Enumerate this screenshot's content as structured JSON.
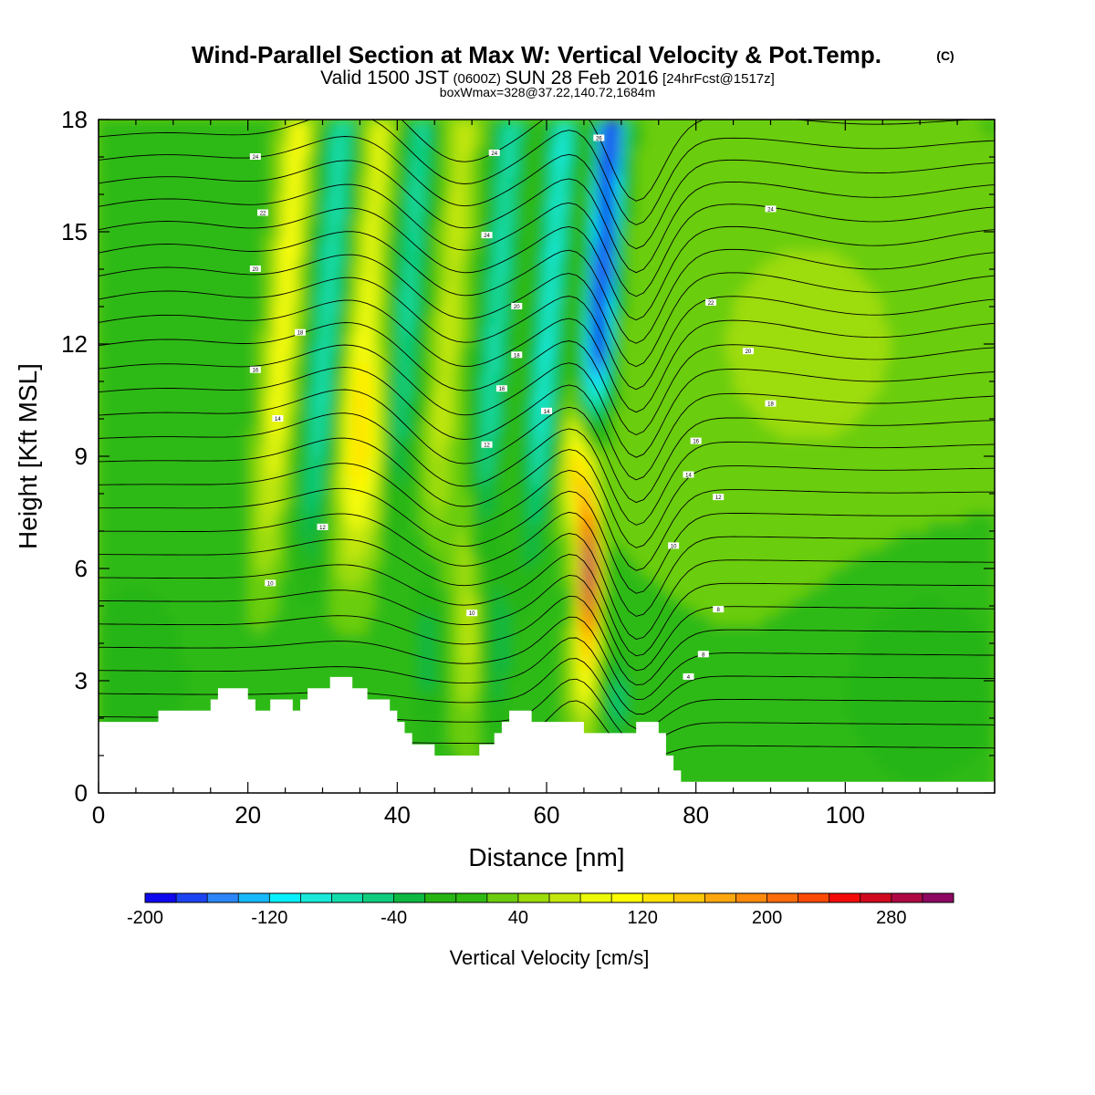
{
  "chart_data": {
    "type": "heatmap",
    "title": {
      "line1": "Wind-Parallel Section at Max W: Vertical Velocity & Pot.Temp.",
      "copyright": "(C)",
      "line2_a": "Valid 1500 JST",
      "line2_b": "(0600Z)",
      "line2_c": "SUN 28 Feb 2016",
      "line2_d": "[24hrFcst@1517z]",
      "line3": "boxWmax=328@37.22,140.72,1684m"
    },
    "xlabel": "Distance [nm]",
    "ylabel": "Height [Kft MSL]",
    "xlim": [
      0,
      120
    ],
    "ylim": [
      0,
      18
    ],
    "xticks": [
      0,
      20,
      40,
      60,
      80,
      100
    ],
    "yticks": [
      0,
      3,
      6,
      9,
      12,
      15,
      18
    ],
    "colorbar": {
      "title": "Vertical Velocity [cm/s]",
      "min": -200,
      "max": 320,
      "step": 20,
      "labels": [
        -200,
        -120,
        -40,
        40,
        120,
        200,
        280
      ],
      "colors": [
        "#0f08ee",
        "#1c43f2",
        "#2b86f8",
        "#16b9fb",
        "#08f0fe",
        "#18e9d8",
        "#13dcaa",
        "#10cc7c",
        "#0eb842",
        "#27b514",
        "#2fba12",
        "#6bcd0e",
        "#9ddc0b",
        "#c4e70b",
        "#ecf909",
        "#fefc00",
        "#fee300",
        "#fbc708",
        "#fda70f",
        "#fd8a0d",
        "#fc6c09",
        "#fd4a05",
        "#f20b09",
        "#d0091f",
        "#ae0844",
        "#8e0763"
      ]
    },
    "terrain": [
      [
        0,
        1.9
      ],
      [
        8,
        1.9
      ],
      [
        8,
        2.2
      ],
      [
        15,
        2.2
      ],
      [
        15,
        2.5
      ],
      [
        16,
        2.5
      ],
      [
        16,
        2.8
      ],
      [
        20,
        2.8
      ],
      [
        20,
        2.5
      ],
      [
        21,
        2.5
      ],
      [
        21,
        2.2
      ],
      [
        23,
        2.2
      ],
      [
        23,
        2.5
      ],
      [
        26,
        2.5
      ],
      [
        26,
        2.2
      ],
      [
        27,
        2.2
      ],
      [
        27,
        2.5
      ],
      [
        28,
        2.5
      ],
      [
        28,
        2.8
      ],
      [
        31,
        2.8
      ],
      [
        31,
        3.1
      ],
      [
        34,
        3.1
      ],
      [
        34,
        2.8
      ],
      [
        36,
        2.8
      ],
      [
        36,
        2.5
      ],
      [
        39,
        2.5
      ],
      [
        39,
        2.2
      ],
      [
        40,
        2.2
      ],
      [
        40,
        1.9
      ],
      [
        41,
        1.9
      ],
      [
        41,
        1.6
      ],
      [
        42,
        1.6
      ],
      [
        42,
        1.3
      ],
      [
        45,
        1.3
      ],
      [
        45,
        1.0
      ],
      [
        51,
        1.0
      ],
      [
        51,
        1.3
      ],
      [
        53,
        1.3
      ],
      [
        53,
        1.6
      ],
      [
        54,
        1.6
      ],
      [
        54,
        1.9
      ],
      [
        55,
        1.9
      ],
      [
        55,
        2.2
      ],
      [
        58,
        2.2
      ],
      [
        58,
        1.9
      ],
      [
        65,
        1.9
      ],
      [
        65,
        1.6
      ],
      [
        72,
        1.6
      ],
      [
        72,
        1.9
      ],
      [
        75,
        1.9
      ],
      [
        75,
        1.6
      ],
      [
        76,
        1.6
      ],
      [
        76,
        1.0
      ],
      [
        77,
        1.0
      ],
      [
        77,
        0.6
      ],
      [
        78,
        0.6
      ],
      [
        78,
        0.3
      ],
      [
        120,
        0.3
      ]
    ],
    "theta_label_values": [
      4,
      8,
      10,
      12,
      14,
      16,
      18,
      20,
      22,
      24,
      26,
      28
    ]
  }
}
